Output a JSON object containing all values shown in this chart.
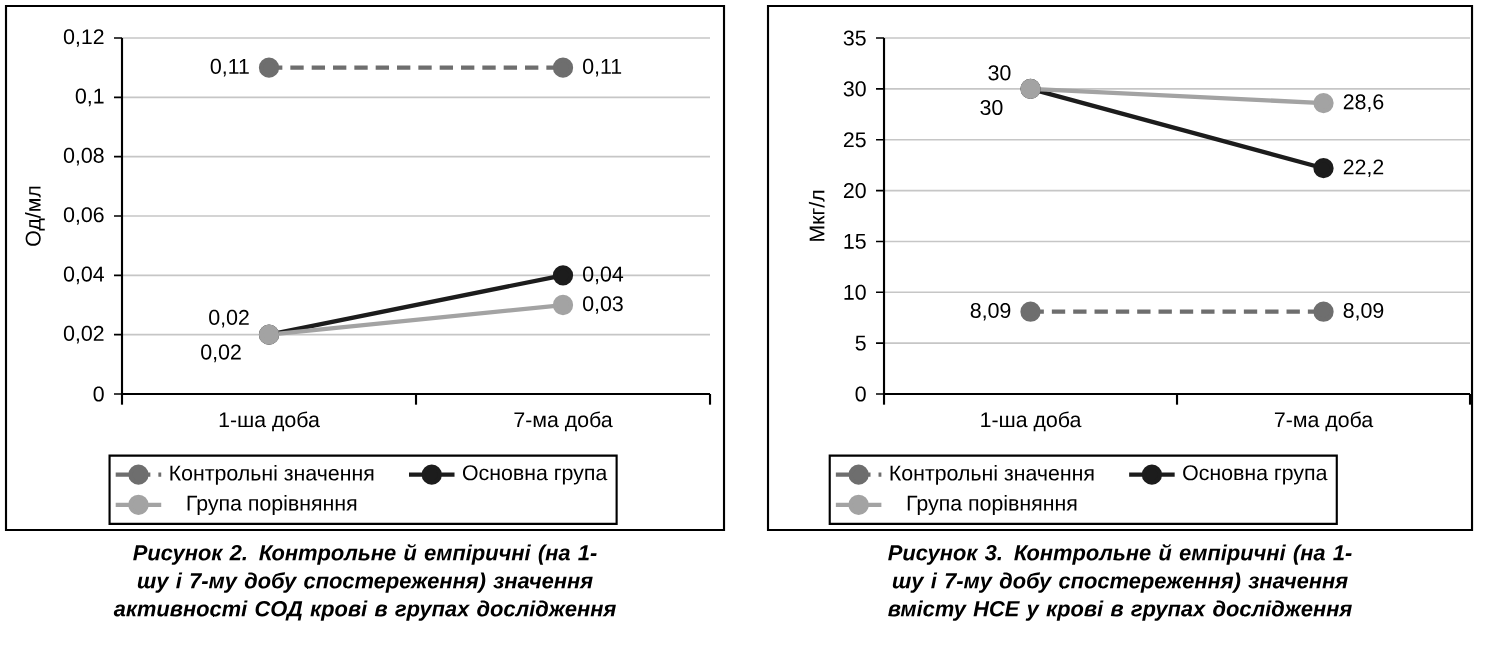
{
  "chart_data": [
    {
      "type": "line",
      "title": "Рисунок 2.  Контрольне й емпіричні (на 1-шу і 7-му добу спостереження) значення активності СОД крові в групах дослідження",
      "ylabel": "Од/мл",
      "categories": [
        "1-ша доба",
        "7-ма доба"
      ],
      "ylim": [
        0,
        0.12
      ],
      "yticks": [
        0,
        {
          "value": 0.02,
          "label": "0,02"
        },
        {
          "value": 0.04,
          "label": "0,04"
        },
        {
          "value": 0.06,
          "label": "0,06"
        },
        {
          "value": 0.08,
          "label": "0,08"
        },
        {
          "value": 0.1,
          "label": "0,1"
        },
        {
          "value": 0.12,
          "label": "0,12"
        }
      ],
      "grid": "y",
      "legend": "bottom",
      "marker": "circle",
      "series": [
        {
          "name": "Контрольні значення",
          "color": "#6e6e6e",
          "line_style": "dashed",
          "values": [
            0.11,
            0.11
          ],
          "value_labels": [
            "0,11",
            "0,11"
          ]
        },
        {
          "name": "Основна група",
          "color": "#1c1c1c",
          "line_style": "solid",
          "values": [
            0.02,
            0.04
          ],
          "value_labels": [
            "0,02",
            "0,04"
          ]
        },
        {
          "name": "Група порівняння",
          "color": "#a3a3a3",
          "line_style": "solid",
          "values": [
            0.02,
            0.03
          ],
          "value_labels": [
            "0,02",
            "0,03"
          ]
        }
      ]
    },
    {
      "type": "line",
      "title": "Рисунок 3.  Контрольне й емпіричні (на 1-шу і 7-му добу спостереження) значення вмісту НСЕ у крові в групах дослідження",
      "ylabel": "Мкг/л",
      "categories": [
        "1-ша доба",
        "7-ма доба"
      ],
      "ylim": [
        0,
        35
      ],
      "yticks": [
        0,
        5,
        10,
        15,
        20,
        25,
        30,
        35
      ],
      "grid": "y",
      "legend": "bottom",
      "marker": "circle",
      "series": [
        {
          "name": "Контрольні значення",
          "color": "#6e6e6e",
          "line_style": "dashed",
          "values": [
            8.09,
            8.09
          ],
          "value_labels": [
            "8,09",
            "8,09"
          ]
        },
        {
          "name": "Основна група",
          "color": "#1c1c1c",
          "line_style": "solid",
          "values": [
            30,
            22.2
          ],
          "value_labels": [
            "30",
            "22,2"
          ]
        },
        {
          "name": "Група порівняння",
          "color": "#a3a3a3",
          "line_style": "solid",
          "values": [
            30,
            28.6
          ],
          "value_labels": [
            "30",
            "28,6"
          ]
        }
      ]
    }
  ]
}
